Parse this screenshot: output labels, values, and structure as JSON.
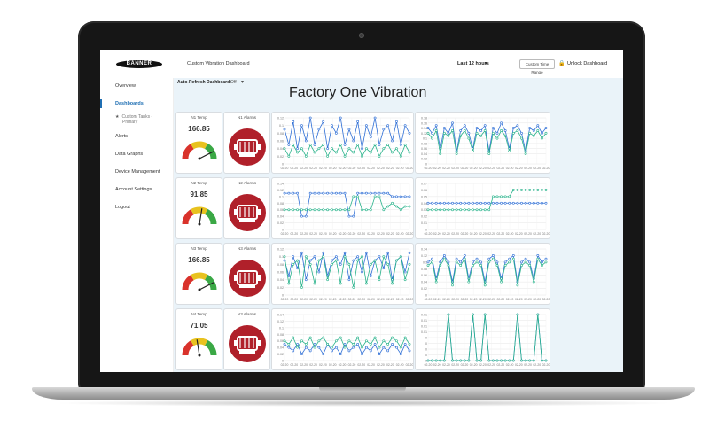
{
  "window": {
    "dashboard_name": "Custom Vibration Dashboard",
    "time_range": "Last 12 hours",
    "custom_time_range": "Custom Time Range",
    "unlock_label": "Unlock Dashboard",
    "logo_text": "BANNER",
    "auto_refresh_label": "Auto-Refresh Dashboard:",
    "auto_refresh_value": "Off"
  },
  "sidebar": {
    "items": [
      {
        "label": "Overview"
      },
      {
        "label": "Dashboards"
      },
      {
        "label": "Alerts"
      },
      {
        "label": "Data Graphs"
      },
      {
        "label": "Device Management"
      },
      {
        "label": "Account Settings"
      },
      {
        "label": "Logout"
      }
    ],
    "sub_item": {
      "line1": "Custom Tanks -",
      "line2": "Primary"
    }
  },
  "page": {
    "title": "Factory One Vibration"
  },
  "rows": [
    {
      "temp_label": "N1 Temp",
      "temp_value": "166.85",
      "alarm_label": "N1 Alarms",
      "gauge_fraction": 0.85
    },
    {
      "temp_label": "N2 Temp",
      "temp_value": "91.85",
      "alarm_label": "N2 Alarms",
      "gauge_fraction": 0.55
    },
    {
      "temp_label": "N3 Temp",
      "temp_value": "166.85",
      "alarm_label": "N3 Alarms",
      "gauge_fraction": 0.85
    },
    {
      "temp_label": "N4 Temp",
      "temp_value": "71.05",
      "alarm_label": "N3 Alarms",
      "gauge_fraction": 0.45
    }
  ],
  "colors": {
    "accent": "#1f6fb3",
    "series_blue": "#2f6fd6",
    "series_green": "#27b28a",
    "alarm_red": "#b0202a",
    "gauge_red": "#d9322b",
    "gauge_yellow": "#e8c21f",
    "gauge_green": "#3aa845"
  },
  "chart_data": [
    {
      "type": "line",
      "yticks": [
        "0.12",
        "0.1",
        "0.08",
        "0.06",
        "0.04",
        "0.02",
        "0"
      ],
      "xtick": "02-20",
      "series": [
        {
          "values": [
            0.09,
            0.05,
            0.11,
            0.04,
            0.1,
            0.06,
            0.12,
            0.05,
            0.09,
            0.11,
            0.04,
            0.1,
            0.08,
            0.12,
            0.05,
            0.09,
            0.06,
            0.11,
            0.04,
            0.1,
            0.07,
            0.12,
            0.05,
            0.09,
            0.1,
            0.06,
            0.11,
            0.05,
            0.1,
            0.08
          ]
        },
        {
          "values": [
            0.04,
            0.02,
            0.05,
            0.03,
            0.04,
            0.02,
            0.05,
            0.03,
            0.04,
            0.05,
            0.02,
            0.04,
            0.03,
            0.05,
            0.02,
            0.04,
            0.03,
            0.05,
            0.02,
            0.04,
            0.03,
            0.05,
            0.02,
            0.04,
            0.05,
            0.03,
            0.04,
            0.02,
            0.05,
            0.03
          ]
        }
      ]
    },
    {
      "type": "line",
      "yticks": [
        "0.18",
        "0.16",
        "0.14",
        "0.12",
        "0.1",
        "0.08",
        "0.06",
        "0.04",
        "0.02",
        "0"
      ],
      "xtick": "02-20",
      "series": [
        {
          "values": [
            0.14,
            0.12,
            0.15,
            0.06,
            0.14,
            0.12,
            0.16,
            0.05,
            0.13,
            0.15,
            0.12,
            0.06,
            0.14,
            0.13,
            0.15,
            0.05,
            0.14,
            0.12,
            0.16,
            0.13,
            0.06,
            0.14,
            0.15,
            0.12,
            0.05,
            0.14,
            0.13,
            0.15,
            0.12,
            0.14
          ]
        },
        {
          "values": [
            0.12,
            0.1,
            0.13,
            0.04,
            0.12,
            0.11,
            0.13,
            0.04,
            0.11,
            0.13,
            0.1,
            0.05,
            0.12,
            0.11,
            0.13,
            0.04,
            0.12,
            0.1,
            0.13,
            0.11,
            0.05,
            0.12,
            0.13,
            0.1,
            0.04,
            0.12,
            0.11,
            0.13,
            0.1,
            0.12
          ]
        }
      ]
    },
    {
      "type": "line",
      "yticks": [
        "0.14",
        "0.12",
        "0.1",
        "0.08",
        "0.06",
        "0.04",
        "0.02",
        "0"
      ],
      "xtick": "02-20",
      "series": [
        {
          "values": [
            0.11,
            0.11,
            0.11,
            0.11,
            0.04,
            0.04,
            0.11,
            0.11,
            0.11,
            0.11,
            0.11,
            0.11,
            0.11,
            0.11,
            0.11,
            0.04,
            0.04,
            0.11,
            0.11,
            0.11,
            0.11,
            0.11,
            0.11,
            0.11,
            0.11,
            0.1,
            0.1,
            0.1,
            0.1,
            0.1
          ]
        },
        {
          "values": [
            0.06,
            0.06,
            0.06,
            0.06,
            0.06,
            0.06,
            0.06,
            0.06,
            0.06,
            0.06,
            0.06,
            0.06,
            0.06,
            0.06,
            0.06,
            0.06,
            0.1,
            0.1,
            0.06,
            0.06,
            0.06,
            0.1,
            0.1,
            0.06,
            0.07,
            0.08,
            0.07,
            0.06,
            0.07,
            0.07
          ]
        }
      ]
    },
    {
      "type": "line",
      "yticks": [
        "0.07",
        "0.06",
        "0.05",
        "0.04",
        "0.03",
        "0.02",
        "0.01",
        "0"
      ],
      "xtick": "02-20",
      "series": [
        {
          "values": [
            0.04,
            0.04,
            0.04,
            0.04,
            0.04,
            0.04,
            0.04,
            0.04,
            0.04,
            0.04,
            0.04,
            0.04,
            0.04,
            0.04,
            0.04,
            0.04,
            0.04,
            0.04,
            0.04,
            0.04,
            0.04,
            0.04,
            0.04,
            0.04,
            0.04,
            0.04,
            0.04,
            0.04,
            0.04,
            0.04
          ]
        },
        {
          "values": [
            0.03,
            0.03,
            0.03,
            0.03,
            0.03,
            0.03,
            0.03,
            0.03,
            0.03,
            0.03,
            0.03,
            0.03,
            0.03,
            0.03,
            0.03,
            0.03,
            0.05,
            0.05,
            0.05,
            0.05,
            0.05,
            0.06,
            0.06,
            0.06,
            0.06,
            0.06,
            0.06,
            0.06,
            0.06,
            0.06
          ]
        }
      ]
    },
    {
      "type": "line",
      "yticks": [
        "0.12",
        "0.1",
        "0.08",
        "0.06",
        "0.04",
        "0.02",
        "0"
      ],
      "xtick": "02-20",
      "series": [
        {
          "values": [
            0.09,
            0.05,
            0.1,
            0.07,
            0.11,
            0.04,
            0.09,
            0.1,
            0.06,
            0.11,
            0.05,
            0.09,
            0.1,
            0.08,
            0.11,
            0.04,
            0.09,
            0.1,
            0.06,
            0.11,
            0.05,
            0.09,
            0.1,
            0.07,
            0.11,
            0.04,
            0.09,
            0.1,
            0.06,
            0.11
          ]
        },
        {
          "values": [
            0.1,
            0.03,
            0.08,
            0.09,
            0.02,
            0.1,
            0.08,
            0.03,
            0.09,
            0.1,
            0.04,
            0.08,
            0.09,
            0.03,
            0.1,
            0.08,
            0.02,
            0.09,
            0.1,
            0.03,
            0.08,
            0.09,
            0.04,
            0.1,
            0.08,
            0.03,
            0.09,
            0.1,
            0.04,
            0.08
          ]
        }
      ]
    },
    {
      "type": "line",
      "yticks": [
        "0.14",
        "0.12",
        "0.1",
        "0.08",
        "0.06",
        "0.04",
        "0.02",
        "0"
      ],
      "xtick": "02-20",
      "series": [
        {
          "values": [
            0.1,
            0.11,
            0.05,
            0.1,
            0.12,
            0.1,
            0.04,
            0.11,
            0.1,
            0.12,
            0.05,
            0.1,
            0.11,
            0.1,
            0.04,
            0.11,
            0.12,
            0.1,
            0.05,
            0.1,
            0.11,
            0.12,
            0.04,
            0.1,
            0.11,
            0.1,
            0.05,
            0.12,
            0.1,
            0.11
          ]
        },
        {
          "values": [
            0.09,
            0.1,
            0.04,
            0.09,
            0.11,
            0.09,
            0.03,
            0.1,
            0.09,
            0.11,
            0.04,
            0.09,
            0.1,
            0.09,
            0.03,
            0.1,
            0.11,
            0.09,
            0.04,
            0.09,
            0.1,
            0.11,
            0.03,
            0.09,
            0.1,
            0.09,
            0.04,
            0.11,
            0.09,
            0.1
          ]
        }
      ]
    },
    {
      "type": "line",
      "yticks": [
        "0.14",
        "0.12",
        "0.1",
        "0.08",
        "0.06",
        "0.04",
        "0.02",
        "0"
      ],
      "xtick": "02-20",
      "series": [
        {
          "values": [
            0.05,
            0.04,
            0.03,
            0.05,
            0.02,
            0.04,
            0.03,
            0.05,
            0.04,
            0.02,
            0.05,
            0.03,
            0.04,
            0.02,
            0.05,
            0.03,
            0.04,
            0.05,
            0.02,
            0.04,
            0.03,
            0.05,
            0.02,
            0.04,
            0.03,
            0.05,
            0.04,
            0.02,
            0.05,
            0.03
          ]
        },
        {
          "values": [
            0.06,
            0.05,
            0.07,
            0.04,
            0.06,
            0.05,
            0.07,
            0.04,
            0.06,
            0.07,
            0.05,
            0.04,
            0.06,
            0.07,
            0.04,
            0.06,
            0.05,
            0.07,
            0.04,
            0.06,
            0.05,
            0.07,
            0.04,
            0.06,
            0.05,
            0.07,
            0.06,
            0.04,
            0.07,
            0.05
          ]
        }
      ]
    },
    {
      "type": "line",
      "yticks": [
        "0.01",
        "0.01",
        "0.01",
        "0.01",
        "0",
        "0",
        "0",
        "0",
        "0"
      ],
      "xtick": "02-20",
      "series": [
        {
          "values": [
            0,
            0,
            0,
            0,
            0,
            0.012,
            0,
            0,
            0,
            0,
            0,
            0.012,
            0,
            0,
            0.012,
            0,
            0,
            0,
            0,
            0,
            0,
            0,
            0.012,
            0,
            0,
            0,
            0,
            0.012,
            0,
            0
          ]
        },
        {
          "values": [
            0,
            0,
            0,
            0,
            0,
            0.011,
            0,
            0,
            0,
            0,
            0,
            0.011,
            0,
            0,
            0.011,
            0,
            0,
            0,
            0,
            0,
            0,
            0,
            0.011,
            0,
            0,
            0,
            0,
            0.011,
            0,
            0
          ]
        }
      ]
    }
  ]
}
